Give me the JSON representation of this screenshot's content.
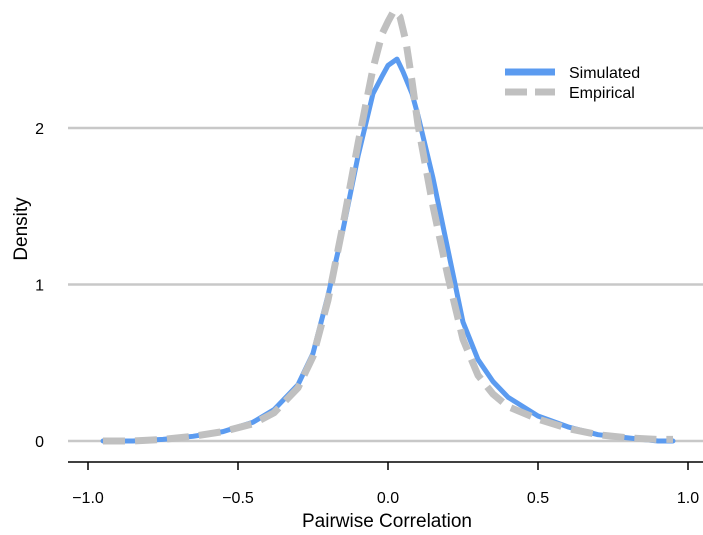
{
  "chart_data": {
    "type": "line",
    "title": "",
    "xlabel": "Pairwise Correlation",
    "ylabel": "Density",
    "xlim": [
      -1.0,
      1.0
    ],
    "ylim": [
      0,
      2.8
    ],
    "xticks": [
      -1.0,
      -0.5,
      0.0,
      0.5,
      1.0
    ],
    "xtick_labels": [
      "−1.0",
      "−0.5",
      "0.0",
      "0.5",
      "1.0"
    ],
    "yticks": [
      0,
      1,
      2
    ],
    "ytick_labels": [
      "0",
      "1",
      "2"
    ],
    "grid": "horizontal",
    "legend_position": "top-right",
    "series": [
      {
        "name": "Simulated",
        "color": "#5b9bf0",
        "style": "solid",
        "x": [
          -0.95,
          -0.85,
          -0.75,
          -0.65,
          -0.55,
          -0.45,
          -0.38,
          -0.3,
          -0.25,
          -0.2,
          -0.15,
          -0.1,
          -0.05,
          -0.02,
          0.0,
          0.03,
          0.05,
          0.08,
          0.1,
          0.15,
          0.2,
          0.25,
          0.3,
          0.35,
          0.4,
          0.5,
          0.6,
          0.7,
          0.8,
          0.9,
          0.95
        ],
        "y": [
          0.0,
          0.0,
          0.01,
          0.03,
          0.06,
          0.12,
          0.2,
          0.36,
          0.56,
          0.93,
          1.35,
          1.82,
          2.22,
          2.33,
          2.4,
          2.44,
          2.36,
          2.22,
          2.08,
          1.68,
          1.22,
          0.76,
          0.52,
          0.38,
          0.28,
          0.16,
          0.09,
          0.04,
          0.02,
          0.0,
          0.0
        ]
      },
      {
        "name": "Empirical",
        "color": "#c0c0c0",
        "style": "dashed",
        "x": [
          -0.95,
          -0.85,
          -0.75,
          -0.65,
          -0.55,
          -0.45,
          -0.38,
          -0.3,
          -0.25,
          -0.2,
          -0.15,
          -0.1,
          -0.05,
          -0.02,
          0.0,
          0.02,
          0.04,
          0.06,
          0.08,
          0.1,
          0.15,
          0.2,
          0.25,
          0.3,
          0.35,
          0.4,
          0.5,
          0.6,
          0.7,
          0.8,
          0.9,
          0.95
        ],
        "y": [
          0.0,
          0.0,
          0.01,
          0.03,
          0.06,
          0.11,
          0.18,
          0.34,
          0.54,
          0.9,
          1.38,
          1.9,
          2.38,
          2.6,
          2.68,
          2.75,
          2.71,
          2.55,
          2.3,
          2.02,
          1.5,
          1.05,
          0.65,
          0.42,
          0.3,
          0.22,
          0.14,
          0.08,
          0.04,
          0.02,
          0.01,
          0.01
        ]
      }
    ]
  }
}
